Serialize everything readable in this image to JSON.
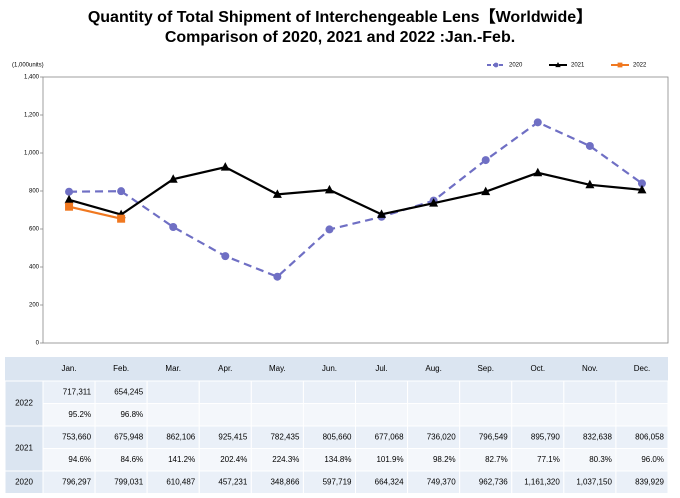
{
  "chart_data": {
    "type": "line",
    "title": "Quantity of Total Shipment of Interchengeable Lens【Worldwide】",
    "subtitle": "Comparison of 2020, 2021 and 2022 :Jan.-Feb.",
    "y_label": "(1,000units)",
    "categories": [
      "Jan.",
      "Feb.",
      "Mar.",
      "Apr.",
      "May.",
      "Jun.",
      "Jul.",
      "Aug.",
      "Sep.",
      "Oct.",
      "Nov.",
      "Dec."
    ],
    "series": [
      {
        "name": "2020",
        "color": "#6f6fc4",
        "dash": true,
        "marker": "circle",
        "values": [
          796.297,
          799.031,
          610.487,
          457.231,
          348.866,
          597.719,
          664.324,
          749.37,
          962.736,
          1161.32,
          1037.15,
          839.929
        ]
      },
      {
        "name": "2021",
        "color": "#000000",
        "dash": false,
        "marker": "triangle",
        "values": [
          753.66,
          675.948,
          862.106,
          925.415,
          782.435,
          805.66,
          677.068,
          736.02,
          796.549,
          895.79,
          832.638,
          806.058
        ]
      },
      {
        "name": "2022",
        "color": "#f07820",
        "dash": false,
        "marker": "square",
        "values": [
          717.311,
          654.245,
          null,
          null,
          null,
          null,
          null,
          null,
          null,
          null,
          null,
          null
        ]
      }
    ],
    "ylim": [
      0,
      1400
    ],
    "yticks": [
      0,
      200,
      400,
      600,
      800,
      {
        "value": 1000,
        "label": "1,000"
      },
      {
        "value": 1200,
        "label": "1,200"
      },
      {
        "value": 1400,
        "label": "1,400"
      }
    ],
    "legend": "top-right"
  },
  "table": {
    "rows": [
      {
        "label": "2022",
        "values": [
          "717,311",
          "654,245"
        ],
        "ratios": [
          "95.2%",
          "96.8%"
        ]
      },
      {
        "label": "2021",
        "values": [
          "753,660",
          "675,948",
          "862,106",
          "925,415",
          "782,435",
          "805,660",
          "677,068",
          "736,020",
          "796,549",
          "895,790",
          "832,638",
          "806,058"
        ],
        "ratios": [
          "94.6%",
          "84.6%",
          "141.2%",
          "202.4%",
          "224.3%",
          "134.8%",
          "101.9%",
          "98.2%",
          "82.7%",
          "77.1%",
          "80.3%",
          "96.0%"
        ]
      },
      {
        "label": "2020",
        "values": [
          "796,297",
          "799,031",
          "610,487",
          "457,231",
          "348,866",
          "597,719",
          "664,324",
          "749,370",
          "962,736",
          "1,161,320",
          "1,037,150",
          "839,929"
        ]
      }
    ]
  }
}
